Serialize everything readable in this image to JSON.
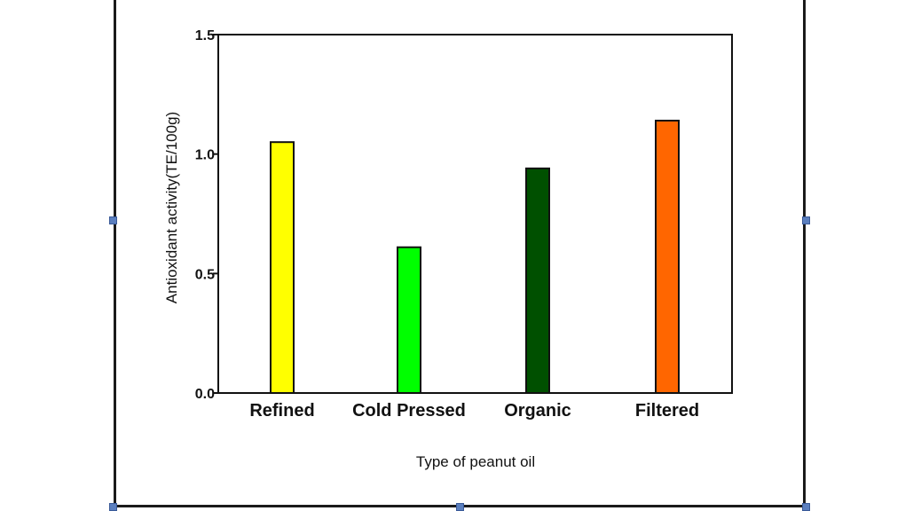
{
  "chart_data": {
    "type": "bar",
    "title": "",
    "xlabel": "Type of peanut  oil",
    "ylabel": "Antioxidant activity(TE/100g)",
    "categories": [
      "Refined",
      "Cold Pressed",
      "Organic",
      "Filtered"
    ],
    "values": [
      1.05,
      0.61,
      0.94,
      1.14
    ],
    "colors": [
      "#ffff00",
      "#00ff00",
      "#005000",
      "#ff6600"
    ],
    "ylim": [
      0,
      1.5
    ],
    "yticks": [
      "0.0",
      "0.5",
      "1.0",
      "1.5"
    ],
    "grid": false,
    "legend": "none"
  }
}
